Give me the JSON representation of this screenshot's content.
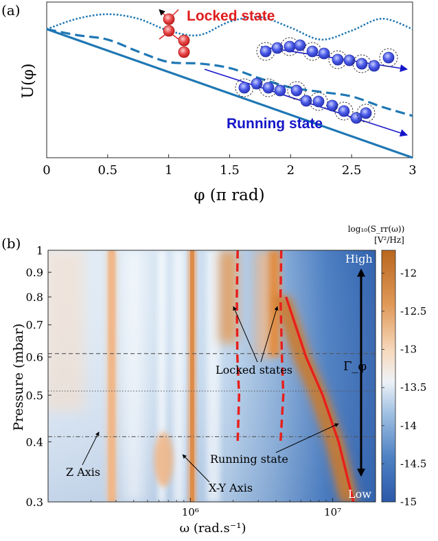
{
  "panel_a": {
    "label": "(a)",
    "ylabel": "U(φ)",
    "xlabel": "φ (π rad)",
    "locked_label": "Locked state",
    "running_label": "Running state",
    "colors": {
      "potential": "#1f77b4",
      "locked": "#e01c1c",
      "running": "#1515c8",
      "particle": "#3d4ee6"
    }
  },
  "panel_b": {
    "label": "(b)",
    "ylabel": "Pressure (mbar)",
    "xlabel": "ω (rad.s⁻¹)",
    "colorbar_title_line1": "log₁₀(S_rr(ω))",
    "colorbar_title_line2": "[V²/Hz]",
    "annotations": {
      "high": "High",
      "low": "Low",
      "gamma": "Γ_φ",
      "locked_states": "Locked states",
      "running_state": "Running state",
      "z_axis": "Z Axis",
      "xy_axis": "X-Y Axis"
    },
    "colors": {
      "curve": "#e8201c",
      "arrow": "#000000",
      "cold": "#2f5fa8",
      "warm": "#c7741e"
    }
  },
  "chart_data": [
    {
      "type": "line",
      "panel": "(a)",
      "xlabel": "φ (π rad)",
      "ylabel": "U(φ)",
      "xlim": [
        0,
        3
      ],
      "x_ticks": [
        "0",
        "0.5",
        "1",
        "1.5",
        "2",
        "2.5",
        "3"
      ],
      "series": [
        {
          "style": "dotted",
          "x": [
            0,
            0.25,
            0.5,
            0.75,
            1.0,
            1.25,
            1.5,
            1.75,
            2.0,
            2.25,
            2.5,
            2.75,
            3.0
          ],
          "y": [
            0.86,
            0.93,
            0.96,
            0.93,
            0.85,
            0.82,
            0.91,
            0.94,
            0.87,
            0.79,
            0.85,
            0.93,
            0.86
          ]
        },
        {
          "style": "dashed",
          "x": [
            0,
            0.25,
            0.5,
            0.75,
            1.0,
            1.25,
            1.5,
            1.75,
            2.0,
            2.25,
            2.5,
            2.75,
            3.0
          ],
          "y": [
            0.86,
            0.82,
            0.79,
            0.71,
            0.64,
            0.63,
            0.6,
            0.53,
            0.47,
            0.44,
            0.41,
            0.34,
            0.28
          ]
        },
        {
          "style": "solid",
          "x": [
            0,
            3.0
          ],
          "y": [
            0.86,
            0.0
          ]
        }
      ],
      "grid": false
    },
    {
      "type": "heatmap",
      "panel": "(b)",
      "xlabel": "ω (rad.s⁻¹)",
      "ylabel": "Pressure (mbar)",
      "x_scale": "log",
      "y_scale": "log",
      "xlim": [
        100000,
        20000000
      ],
      "ylim": [
        0.3,
        1.0
      ],
      "x_ticks": [
        "10⁶",
        "10⁷"
      ],
      "y_ticks": [
        "0.3",
        "0.4",
        "0.5",
        "0.6",
        "0.7",
        "0.8",
        "0.9",
        "1"
      ],
      "colorbar_title": "log₁₀(S_rr(ω)) [V²/Hz]",
      "colorbar_ticks": [
        "-12",
        "-12.5",
        "-13",
        "-13.5",
        "-14",
        "-14.5",
        "-15"
      ],
      "colorbar_range": [
        -15,
        -11.7
      ],
      "horizontal_reference_lines": [
        {
          "pressure": 0.61,
          "style": "dashed"
        },
        {
          "pressure": 0.51,
          "style": "dotted"
        },
        {
          "pressure": 0.41,
          "style": "dashdot"
        }
      ],
      "bright_bands": [
        {
          "name": "Z Axis",
          "omega": 280000
        },
        {
          "name": "X-Y Axis",
          "omega": 1030000
        }
      ],
      "series": [
        {
          "name": "Locked states",
          "style": "dashed",
          "points": [
            [
              2150000,
              1.0
            ],
            [
              2120000,
              0.8
            ],
            [
              2140000,
              0.6
            ],
            [
              2200000,
              0.5
            ],
            [
              2150000,
              0.4
            ]
          ]
        },
        {
          "name": "Locked states",
          "style": "dashed",
          "points": [
            [
              4350000,
              1.0
            ],
            [
              4300000,
              0.8
            ],
            [
              4400000,
              0.6
            ],
            [
              4500000,
              0.5
            ],
            [
              4300000,
              0.4
            ]
          ]
        },
        {
          "name": "Running state",
          "style": "solid",
          "points": [
            [
              4700000,
              0.8
            ],
            [
              6500000,
              0.6
            ],
            [
              8500000,
              0.5
            ],
            [
              11000000,
              0.4
            ],
            [
              14000000,
              0.3
            ]
          ]
        }
      ]
    }
  ]
}
